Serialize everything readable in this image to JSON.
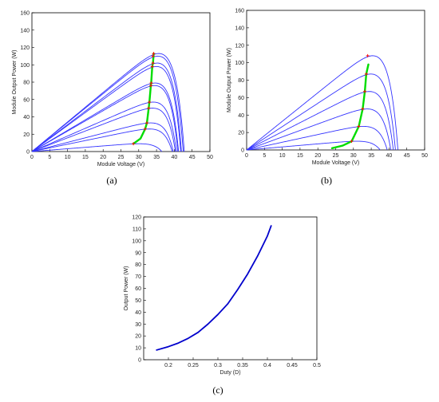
{
  "colors": {
    "curve": "#3333ff",
    "mpp": "#ff0000",
    "track": "#00dd00",
    "axis": "#000000",
    "duty_curve": "#0000cc"
  },
  "chart_data": [
    {
      "type": "line",
      "caption": "(a)",
      "xlabel": "Module Voltage (V)",
      "ylabel": "Module Output Power (W)",
      "xlim": [
        0,
        50
      ],
      "ylim": [
        0,
        160
      ],
      "xticks": [
        "0",
        "5",
        "10",
        "15",
        "20",
        "25",
        "30",
        "35",
        "40",
        "45",
        "50"
      ],
      "yticks": [
        "0",
        "20",
        "40",
        "60",
        "80",
        "100",
        "120",
        "140",
        "160"
      ],
      "grid": false,
      "pv_curves": [
        {
          "pmax": 113,
          "vmp": 34.2,
          "voc": 42.8
        },
        {
          "pmax": 110,
          "vmp": 34.0,
          "voc": 42.5
        },
        {
          "pmax": 102,
          "vmp": 34.0,
          "voc": 42.0
        },
        {
          "pmax": 98,
          "vmp": 33.8,
          "voc": 41.8
        },
        {
          "pmax": 79,
          "vmp": 33.5,
          "voc": 41.2
        },
        {
          "pmax": 76,
          "vmp": 33.4,
          "voc": 41.0
        },
        {
          "pmax": 57,
          "vmp": 33.0,
          "voc": 40.6
        },
        {
          "pmax": 50,
          "vmp": 32.8,
          "voc": 40.3
        },
        {
          "pmax": 33,
          "vmp": 32.3,
          "voc": 39.7
        },
        {
          "pmax": 26,
          "vmp": 31.8,
          "voc": 39.4
        },
        {
          "pmax": 9,
          "vmp": 28.5,
          "voc": 36.5
        }
      ],
      "mpp_points": [
        [
          28.5,
          9
        ],
        [
          31.8,
          26
        ],
        [
          32.3,
          33
        ],
        [
          32.8,
          50
        ],
        [
          33.0,
          57
        ],
        [
          33.4,
          76
        ],
        [
          33.5,
          79
        ],
        [
          33.8,
          98
        ],
        [
          34.0,
          102
        ],
        [
          34.0,
          110
        ],
        [
          34.2,
          113
        ]
      ],
      "tracking_path": [
        [
          28.5,
          9
        ],
        [
          30.5,
          15
        ],
        [
          31.8,
          26
        ],
        [
          32.3,
          33
        ],
        [
          32.8,
          50
        ],
        [
          33.0,
          57
        ],
        [
          33.4,
          76
        ],
        [
          33.5,
          79
        ],
        [
          33.8,
          98
        ],
        [
          34.0,
          102
        ],
        [
          34.2,
          113
        ]
      ]
    },
    {
      "type": "line",
      "caption": "(b)",
      "xlabel": "Module Voltage (V)",
      "ylabel": "Module Output Power (W)",
      "xlim": [
        0,
        50
      ],
      "ylim": [
        0,
        160
      ],
      "xticks": [
        "0",
        "5",
        "10",
        "15",
        "20",
        "25",
        "30",
        "35",
        "40",
        "45",
        "50"
      ],
      "yticks": [
        "0",
        "20",
        "40",
        "60",
        "80",
        "100",
        "120",
        "140",
        "160"
      ],
      "grid": false,
      "pv_curves": [
        {
          "pmax": 108,
          "vmp": 34.0,
          "voc": 42.5
        },
        {
          "pmax": 87,
          "vmp": 33.6,
          "voc": 41.8
        },
        {
          "pmax": 67,
          "vmp": 33.2,
          "voc": 41.2
        },
        {
          "pmax": 47,
          "vmp": 32.6,
          "voc": 40.5
        },
        {
          "pmax": 27,
          "vmp": 31.5,
          "voc": 39.5
        },
        {
          "pmax": 10,
          "vmp": 29.5,
          "voc": 37.5
        }
      ],
      "mpp_points": [
        [
          29.5,
          10
        ],
        [
          31.5,
          27
        ],
        [
          32.6,
          47
        ],
        [
          33.2,
          67
        ],
        [
          33.6,
          87
        ],
        [
          34.0,
          108
        ]
      ],
      "tracking_path": [
        [
          24,
          2
        ],
        [
          27,
          5
        ],
        [
          29.5,
          10
        ],
        [
          31.5,
          27
        ],
        [
          32.6,
          47
        ],
        [
          33.2,
          67
        ],
        [
          33.6,
          87
        ],
        [
          34.2,
          98
        ]
      ]
    },
    {
      "type": "line",
      "caption": "(c)",
      "xlabel": "Duty (D)",
      "ylabel": "Output Power (W)",
      "xlim": [
        0.15,
        0.5
      ],
      "ylim": [
        0,
        120
      ],
      "xticks": [
        "0.2",
        "0.25",
        "0.3",
        "0.35",
        "0.4",
        "0.45",
        "0.5"
      ],
      "yticks": [
        "0",
        "10",
        "20",
        "30",
        "40",
        "50",
        "60",
        "70",
        "80",
        "90",
        "100",
        "110",
        "120"
      ],
      "grid": false,
      "series": [
        {
          "x": [
            0.175,
            0.2,
            0.22,
            0.24,
            0.26,
            0.28,
            0.3,
            0.32,
            0.34,
            0.36,
            0.38,
            0.4,
            0.408
          ],
          "y": [
            8,
            11,
            14,
            18,
            23,
            30,
            38,
            47,
            59,
            72,
            87,
            104,
            113
          ]
        }
      ]
    }
  ]
}
